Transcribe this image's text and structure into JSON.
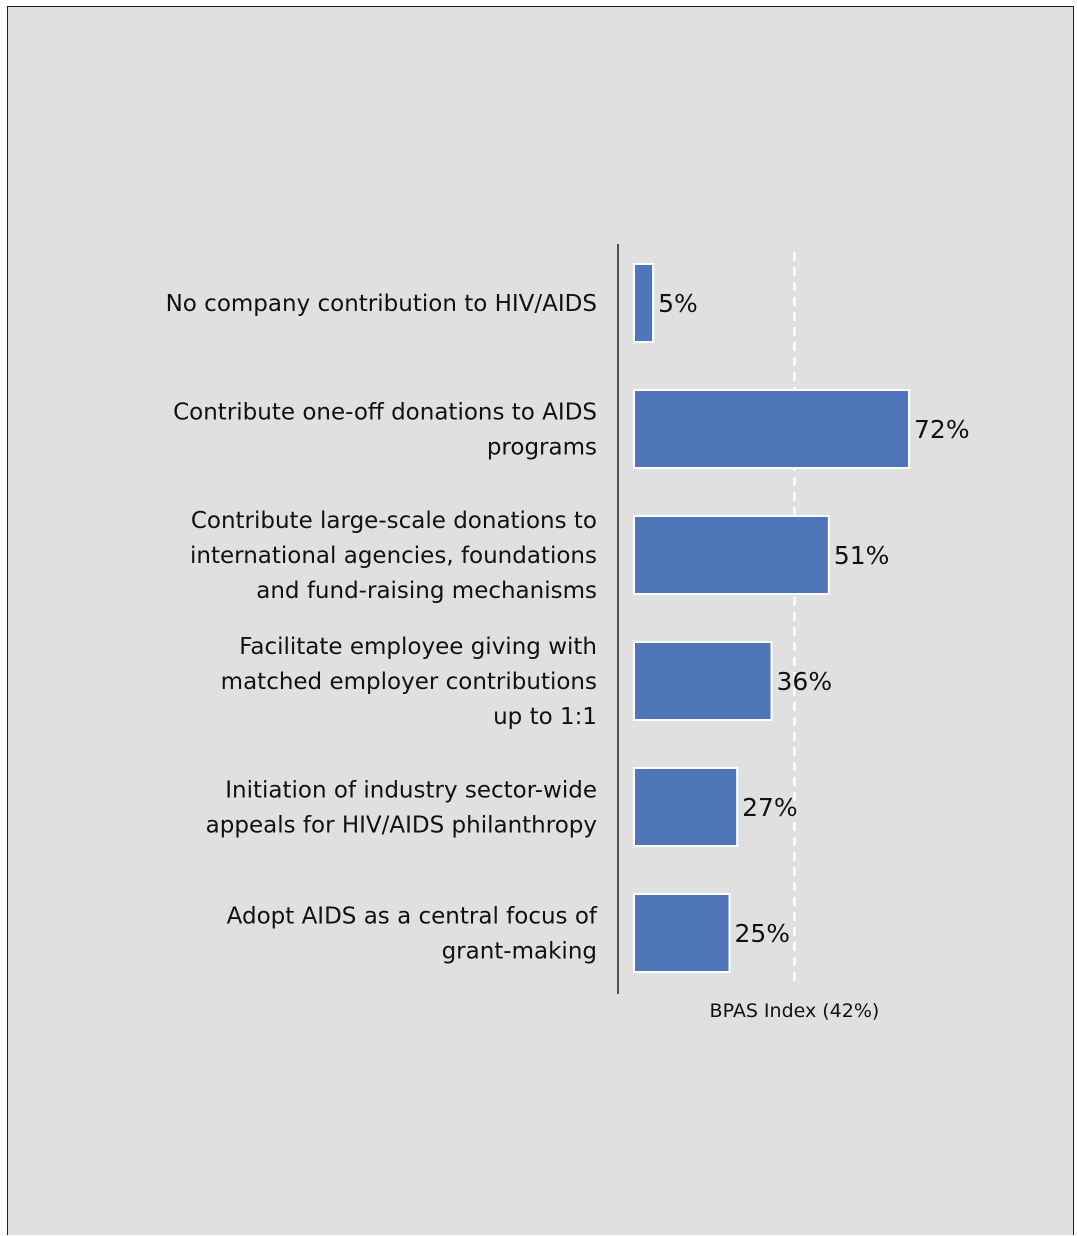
{
  "chart_data": {
    "type": "bar",
    "orientation": "horizontal",
    "categories": [
      [
        "No company contribution to HIV/AIDS"
      ],
      [
        "Contribute one-off donations to AIDS",
        "programs"
      ],
      [
        "Contribute large-scale donations to",
        "international agencies, foundations",
        "and fund-raising mechanisms"
      ],
      [
        "Facilitate employee giving with",
        "matched employer contributions",
        "up to 1:1"
      ],
      [
        "Initiation of industry sector-wide",
        "appeals for HIV/AIDS philanthropy"
      ],
      [
        "Adopt AIDS as a central focus of",
        "grant-making"
      ]
    ],
    "values": [
      5,
      72,
      51,
      36,
      27,
      25
    ],
    "value_labels": [
      "5%",
      "72%",
      "51%",
      "36%",
      "27%",
      "25%"
    ],
    "unit": "%",
    "xlim": [
      0,
      100
    ],
    "reference_line": {
      "value": 42,
      "label": "BPAS Index (42%)",
      "style": "dashed"
    },
    "bar_color": "#4e76b8",
    "bar_border_color": "#ffffff",
    "background_color": "#e0e0e0",
    "grid": false,
    "legend": "none"
  }
}
